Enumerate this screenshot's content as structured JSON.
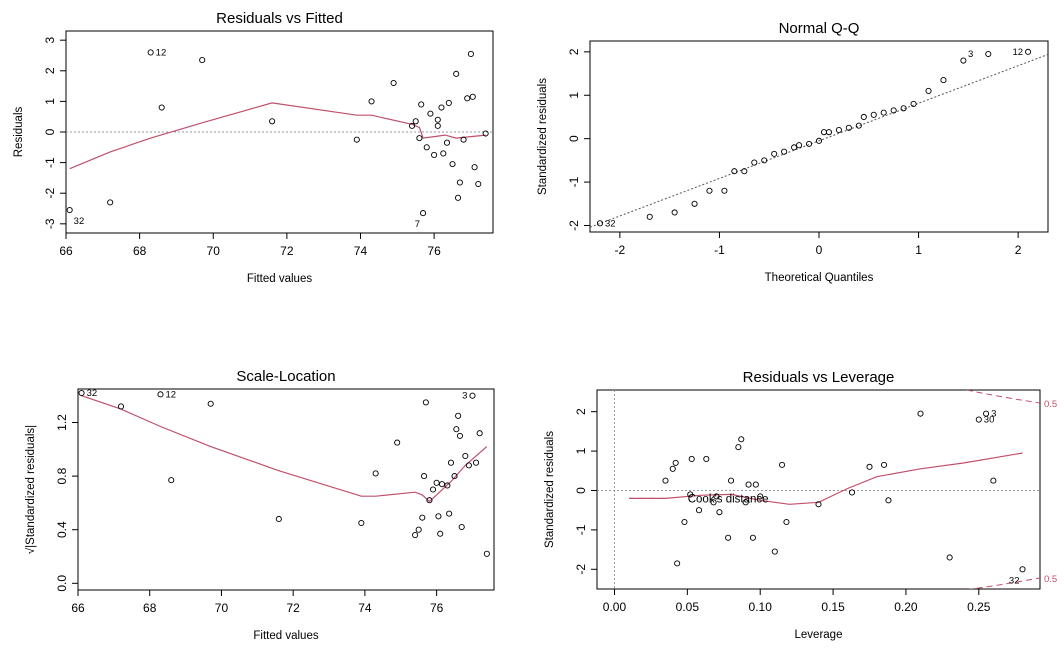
{
  "chart_data": [
    {
      "type": "scatter",
      "title": "Residuals vs Fitted",
      "xlabel": "Fitted values",
      "ylabel": "Residuals",
      "xlim": [
        66,
        77.6
      ],
      "ylim": [
        -3.3,
        3.3
      ],
      "xticks": [
        66,
        68,
        70,
        72,
        74,
        76
      ],
      "yticks": [
        -3,
        -2,
        -1,
        0,
        1,
        2,
        3
      ],
      "points": [
        [
          66.1,
          -2.55
        ],
        [
          67.2,
          -2.3
        ],
        [
          68.3,
          2.6
        ],
        [
          68.6,
          0.8
        ],
        [
          69.7,
          2.35
        ],
        [
          71.6,
          0.35
        ],
        [
          73.9,
          -0.25
        ],
        [
          74.3,
          1.0
        ],
        [
          74.9,
          1.6
        ],
        [
          75.4,
          0.2
        ],
        [
          75.5,
          0.35
        ],
        [
          75.6,
          -0.2
        ],
        [
          75.65,
          0.9
        ],
        [
          75.7,
          -2.65
        ],
        [
          75.8,
          -0.5
        ],
        [
          75.9,
          0.6
        ],
        [
          76.0,
          -0.75
        ],
        [
          76.1,
          0.4
        ],
        [
          76.1,
          0.2
        ],
        [
          76.2,
          0.8
        ],
        [
          76.25,
          -0.7
        ],
        [
          76.35,
          -0.35
        ],
        [
          76.4,
          0.95
        ],
        [
          76.5,
          -1.05
        ],
        [
          76.6,
          1.9
        ],
        [
          76.65,
          -2.15
        ],
        [
          76.7,
          -1.65
        ],
        [
          76.8,
          -0.25
        ],
        [
          76.9,
          1.1
        ],
        [
          77.0,
          2.55
        ],
        [
          77.05,
          1.15
        ],
        [
          77.1,
          -1.15
        ],
        [
          77.2,
          -1.7
        ],
        [
          77.4,
          -0.05
        ]
      ],
      "smoother": [
        [
          66.1,
          -1.2
        ],
        [
          67.2,
          -0.65
        ],
        [
          68.3,
          -0.2
        ],
        [
          69.7,
          0.3
        ],
        [
          71.6,
          0.95
        ],
        [
          73.9,
          0.55
        ],
        [
          74.3,
          0.55
        ],
        [
          75.4,
          0.25
        ],
        [
          75.6,
          0.15
        ],
        [
          75.7,
          -0.2
        ],
        [
          76.0,
          -0.15
        ],
        [
          76.3,
          -0.1
        ],
        [
          76.6,
          -0.2
        ],
        [
          77.0,
          -0.15
        ],
        [
          77.4,
          -0.1
        ]
      ],
      "labels": [
        {
          "text": "12",
          "x": 68.3,
          "y": 2.6,
          "pos": "right"
        },
        {
          "text": "32",
          "x": 66.1,
          "y": -2.55,
          "pos": "below-right"
        },
        {
          "text": "7",
          "x": 75.7,
          "y": -2.65,
          "pos": "below-left"
        }
      ],
      "reference": {
        "type": "hline",
        "value": 0
      }
    },
    {
      "type": "scatter",
      "title": "Normal Q-Q",
      "xlabel": "Theoretical Quantiles",
      "ylabel": "Standardized residuals",
      "xlim": [
        -2.3,
        2.3
      ],
      "ylim": [
        -2.15,
        2.25
      ],
      "xticks": [
        -2,
        -1,
        0,
        1,
        2
      ],
      "yticks": [
        -2,
        -1,
        0,
        1,
        2
      ],
      "points": [
        [
          -2.2,
          -1.95
        ],
        [
          -1.7,
          -1.8
        ],
        [
          -1.45,
          -1.7
        ],
        [
          -1.25,
          -1.5
        ],
        [
          -1.1,
          -1.2
        ],
        [
          -0.95,
          -1.2
        ],
        [
          -0.85,
          -0.75
        ],
        [
          -0.75,
          -0.75
        ],
        [
          -0.65,
          -0.55
        ],
        [
          -0.55,
          -0.5
        ],
        [
          -0.45,
          -0.35
        ],
        [
          -0.35,
          -0.3
        ],
        [
          -0.25,
          -0.2
        ],
        [
          -0.2,
          -0.15
        ],
        [
          -0.1,
          -0.12
        ],
        [
          0.0,
          -0.05
        ],
        [
          0.05,
          0.15
        ],
        [
          0.1,
          0.15
        ],
        [
          0.2,
          0.2
        ],
        [
          0.3,
          0.25
        ],
        [
          0.4,
          0.3
        ],
        [
          0.45,
          0.5
        ],
        [
          0.55,
          0.55
        ],
        [
          0.65,
          0.6
        ],
        [
          0.75,
          0.65
        ],
        [
          0.85,
          0.7
        ],
        [
          0.95,
          0.8
        ],
        [
          1.1,
          1.1
        ],
        [
          1.25,
          1.35
        ],
        [
          1.45,
          1.8
        ],
        [
          1.7,
          1.95
        ],
        [
          2.1,
          2.0
        ]
      ],
      "labels": [
        {
          "text": "3",
          "x": 1.6,
          "y": 1.95,
          "pos": "left"
        },
        {
          "text": "12",
          "x": 2.1,
          "y": 2.0,
          "pos": "left"
        },
        {
          "text": "32",
          "x": -2.2,
          "y": -1.95,
          "pos": "right"
        }
      ],
      "reference": {
        "type": "line",
        "from": [
          -2.6,
          -2.3
        ],
        "to": [
          2.6,
          2.2
        ]
      }
    },
    {
      "type": "scatter",
      "title": "Scale-Location",
      "xlabel": "Fitted values",
      "ylabel": "√|Standardized residuals|",
      "xlim": [
        66,
        77.6
      ],
      "ylim": [
        -0.05,
        1.45
      ],
      "xticks": [
        66,
        68,
        70,
        72,
        74,
        76
      ],
      "yticks": [
        0.0,
        0.4,
        0.8,
        1.2
      ],
      "points": [
        [
          66.1,
          1.42
        ],
        [
          67.2,
          1.32
        ],
        [
          68.3,
          1.41
        ],
        [
          68.6,
          0.77
        ],
        [
          69.7,
          1.34
        ],
        [
          71.6,
          0.48
        ],
        [
          73.9,
          0.45
        ],
        [
          74.3,
          0.82
        ],
        [
          74.9,
          1.05
        ],
        [
          75.4,
          0.36
        ],
        [
          75.5,
          0.4
        ],
        [
          75.6,
          0.49
        ],
        [
          75.65,
          0.8
        ],
        [
          75.7,
          1.35
        ],
        [
          75.8,
          0.62
        ],
        [
          75.9,
          0.7
        ],
        [
          76.0,
          0.75
        ],
        [
          76.05,
          0.5
        ],
        [
          76.1,
          0.37
        ],
        [
          76.15,
          0.74
        ],
        [
          76.3,
          0.73
        ],
        [
          76.35,
          0.52
        ],
        [
          76.4,
          0.9
        ],
        [
          76.5,
          0.8
        ],
        [
          76.55,
          1.15
        ],
        [
          76.6,
          1.25
        ],
        [
          76.65,
          1.1
        ],
        [
          76.7,
          0.42
        ],
        [
          76.8,
          0.95
        ],
        [
          76.9,
          0.88
        ],
        [
          77.0,
          1.4
        ],
        [
          77.1,
          0.9
        ],
        [
          77.2,
          1.12
        ],
        [
          77.4,
          0.22
        ]
      ],
      "smoother": [
        [
          66.1,
          1.4
        ],
        [
          67.2,
          1.3
        ],
        [
          68.3,
          1.17
        ],
        [
          69.7,
          1.02
        ],
        [
          71.6,
          0.84
        ],
        [
          73.9,
          0.65
        ],
        [
          74.3,
          0.65
        ],
        [
          75.4,
          0.68
        ],
        [
          75.6,
          0.66
        ],
        [
          75.8,
          0.61
        ],
        [
          76.0,
          0.66
        ],
        [
          76.4,
          0.76
        ],
        [
          76.8,
          0.88
        ],
        [
          77.4,
          1.02
        ]
      ],
      "labels": [
        {
          "text": "32",
          "x": 66.1,
          "y": 1.42,
          "pos": "right"
        },
        {
          "text": "12",
          "x": 68.3,
          "y": 1.41,
          "pos": "right"
        },
        {
          "text": "3",
          "x": 77.0,
          "y": 1.4,
          "pos": "left"
        }
      ]
    },
    {
      "type": "scatter",
      "title": "Residuals vs Leverage",
      "xlabel": "Leverage",
      "ylabel": "Standardized residuals",
      "xlim": [
        -0.012,
        0.292
      ],
      "ylim": [
        -2.5,
        2.55
      ],
      "xticks": [
        0.0,
        0.05,
        0.1,
        0.15,
        0.2,
        0.25
      ],
      "yticks": [
        -2,
        -1,
        0,
        1,
        2
      ],
      "points": [
        [
          0.035,
          0.25
        ],
        [
          0.04,
          0.55
        ],
        [
          0.042,
          0.7
        ],
        [
          0.043,
          -1.85
        ],
        [
          0.048,
          -0.8
        ],
        [
          0.052,
          -0.1
        ],
        [
          0.053,
          0.8
        ],
        [
          0.058,
          -0.5
        ],
        [
          0.063,
          0.8
        ],
        [
          0.068,
          -0.3
        ],
        [
          0.07,
          -0.15
        ],
        [
          0.072,
          -0.55
        ],
        [
          0.078,
          -1.2
        ],
        [
          0.08,
          0.25
        ],
        [
          0.085,
          1.1
        ],
        [
          0.087,
          1.3
        ],
        [
          0.09,
          -0.3
        ],
        [
          0.092,
          0.15
        ],
        [
          0.095,
          -1.2
        ],
        [
          0.097,
          0.15
        ],
        [
          0.1,
          -0.15
        ],
        [
          0.11,
          -1.55
        ],
        [
          0.115,
          0.65
        ],
        [
          0.118,
          -0.8
        ],
        [
          0.14,
          -0.35
        ],
        [
          0.163,
          -0.05
        ],
        [
          0.175,
          0.6
        ],
        [
          0.185,
          0.65
        ],
        [
          0.188,
          -0.25
        ],
        [
          0.21,
          1.95
        ],
        [
          0.23,
          -1.7
        ],
        [
          0.25,
          1.8
        ],
        [
          0.255,
          1.95
        ],
        [
          0.26,
          0.25
        ],
        [
          0.28,
          -2.0
        ]
      ],
      "smoother": [
        [
          0.01,
          -0.2
        ],
        [
          0.035,
          -0.2
        ],
        [
          0.06,
          -0.12
        ],
        [
          0.08,
          -0.1
        ],
        [
          0.1,
          -0.25
        ],
        [
          0.12,
          -0.35
        ],
        [
          0.14,
          -0.3
        ],
        [
          0.16,
          0.05
        ],
        [
          0.18,
          0.35
        ],
        [
          0.21,
          0.55
        ],
        [
          0.24,
          0.7
        ],
        [
          0.28,
          0.95
        ]
      ],
      "labels": [
        {
          "text": "3",
          "x": 0.255,
          "y": 1.95,
          "pos": "right"
        },
        {
          "text": "30",
          "x": 0.25,
          "y": 1.8,
          "pos": "right"
        },
        {
          "text": "32",
          "x": 0.28,
          "y": -2.0,
          "pos": "below-left"
        }
      ],
      "cooks_distance": {
        "label": "Cook's distance",
        "level": "0.5",
        "upper": [
          [
            0.235,
            2.6
          ],
          [
            0.255,
            2.45
          ],
          [
            0.275,
            2.32
          ],
          [
            0.292,
            2.22
          ]
        ],
        "lower": [
          [
            0.235,
            -2.55
          ],
          [
            0.255,
            -2.45
          ],
          [
            0.275,
            -2.33
          ],
          [
            0.292,
            -2.22
          ]
        ]
      }
    }
  ]
}
